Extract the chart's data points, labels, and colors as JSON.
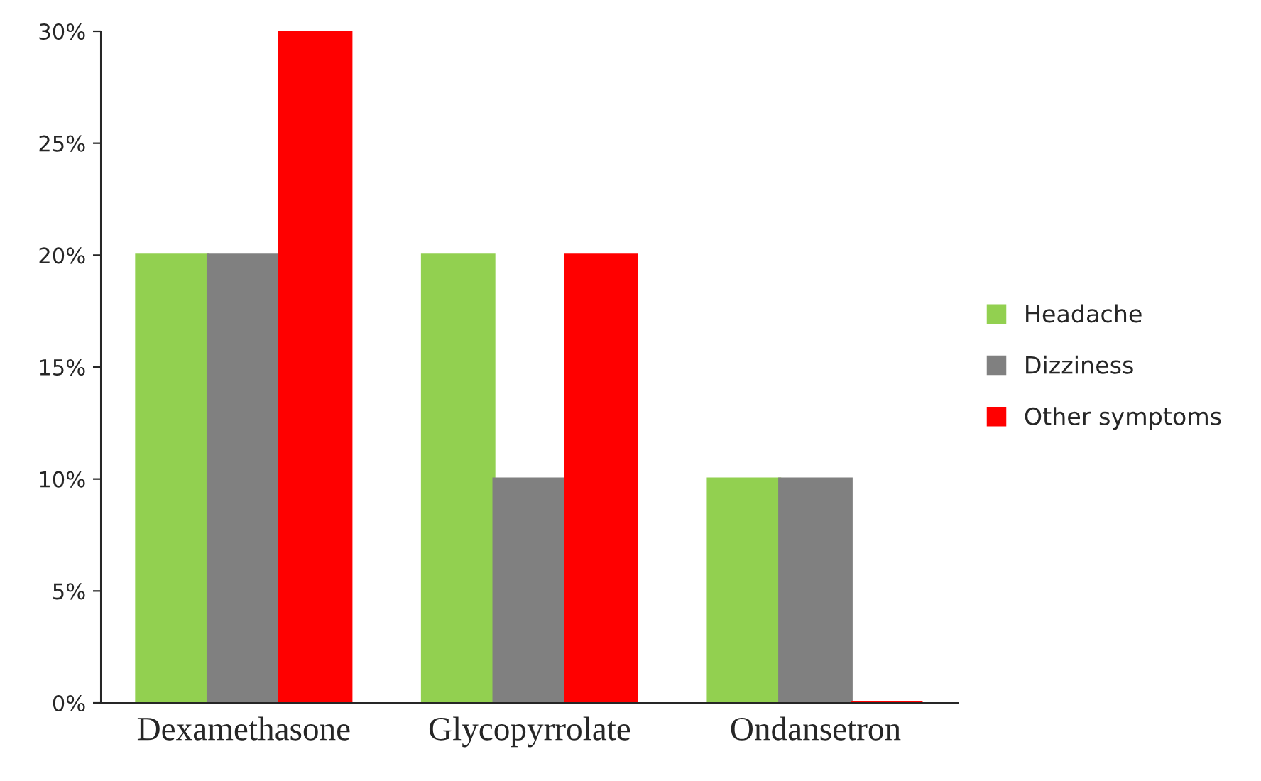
{
  "chart_data": {
    "type": "bar",
    "categories": [
      "Dexamethasone",
      "Glycopyrrolate",
      "Ondansetron"
    ],
    "series": [
      {
        "name": "Headache",
        "color": "#92d050",
        "values": [
          20,
          20,
          10
        ]
      },
      {
        "name": "Dizziness",
        "color": "#808080",
        "values": [
          20,
          10,
          10
        ]
      },
      {
        "name": "Other symptoms",
        "color": "#ff0000",
        "values": [
          30,
          20,
          0
        ]
      }
    ],
    "ylim": [
      0,
      30
    ],
    "yticks": [
      {
        "value": 0,
        "label": "0%"
      },
      {
        "value": 5,
        "label": "5%"
      },
      {
        "value": 10,
        "label": "10%"
      },
      {
        "value": 15,
        "label": "15%"
      },
      {
        "value": 20,
        "label": "20%"
      },
      {
        "value": 25,
        "label": "25%"
      },
      {
        "value": 30,
        "label": "30%"
      }
    ],
    "grid": false,
    "legend": "right"
  }
}
